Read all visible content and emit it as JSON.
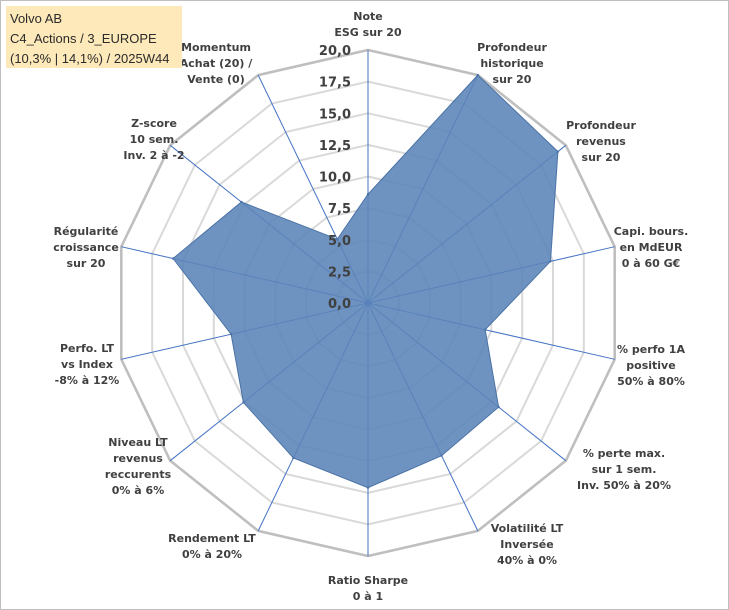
{
  "info": {
    "name": "Volvo AB",
    "line2": "C4_Actions / 3_EUROPE",
    "line3": "(10,3% | 14,1%) / 2025W44"
  },
  "chart_data": {
    "type": "radar",
    "title": "",
    "rmax": 20,
    "ticks": [
      "0,0",
      "2,5",
      "5,0",
      "7,5",
      "10,0",
      "12,5",
      "15,0",
      "17,5",
      "20,0"
    ],
    "series": [
      {
        "name": "Volvo AB",
        "color": "#5b84b8",
        "values": [
          8.6,
          20.0,
          19.2,
          14.8,
          9.5,
          13.2,
          13.4,
          14.6,
          13.6,
          12.6,
          11.1,
          15.8,
          12.8,
          5.6
        ]
      }
    ],
    "axes": [
      [
        "Note",
        "ESG sur 20"
      ],
      [
        "Profondeur",
        "historique",
        "sur 20"
      ],
      [
        "Profondeur",
        "revenus",
        "sur 20"
      ],
      [
        "Capi. bours.",
        "en MdEUR",
        "0 à 60 G€"
      ],
      [
        "% perfo 1A",
        "positive",
        "50% à 80%"
      ],
      [
        "% perte max.",
        "sur 1 sem.",
        "Inv. 50% à 20%"
      ],
      [
        "Volatilité LT",
        "Inversée",
        "40% à 0%"
      ],
      [
        "Ratio Sharpe",
        "0 à 1"
      ],
      [
        "Rendement LT",
        "0% à 20%"
      ],
      [
        "Niveau LT",
        "revenus",
        "reccurents",
        "0% à 6%"
      ],
      [
        "Perfo. LT",
        "vs Index",
        "-8% à 12%"
      ],
      [
        "Régularité",
        "croissance",
        "sur 20"
      ],
      [
        "Z-score",
        "10 sem.",
        "Inv. 2 à -2"
      ],
      [
        "Momentum",
        "Achat (20) /",
        "Vente (0)"
      ]
    ]
  }
}
